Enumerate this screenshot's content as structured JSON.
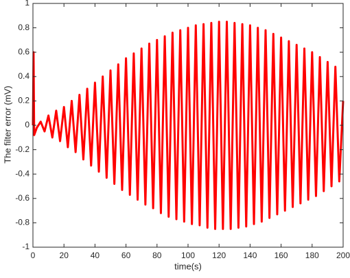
{
  "chart_data": {
    "type": "line",
    "xlabel": "time(s)",
    "ylabel": "The filter error (mV)",
    "x": [
      0,
      0.4,
      0.8,
      2.5,
      5,
      7.5,
      10,
      12.5,
      15,
      17.5,
      20,
      22.5,
      25,
      27.5,
      30,
      32.5,
      35,
      37.5,
      40,
      42.5,
      45,
      47.5,
      50,
      52.5,
      55,
      57.5,
      60,
      62.5,
      65,
      67.5,
      70,
      72.5,
      75,
      77.5,
      80,
      82.5,
      85,
      87.5,
      90,
      92.5,
      95,
      97.5,
      100,
      102.5,
      105,
      107.5,
      110,
      112.5,
      115,
      117.5,
      120,
      122.5,
      125,
      127.5,
      130,
      132.5,
      135,
      137.5,
      140,
      142.5,
      145,
      147.5,
      150,
      152.5,
      155,
      157.5,
      160,
      162.5,
      165,
      167.5,
      170,
      172.5,
      175,
      177.5,
      180,
      182.5,
      185,
      187.5,
      190,
      192.5,
      195,
      197.5,
      200
    ],
    "series": [
      {
        "color": "#ff0000",
        "values": [
          0,
          0.6,
          -0.08,
          -0.02,
          0.03,
          -0.05,
          0.08,
          -0.1,
          0.12,
          -0.13,
          0.15,
          -0.18,
          0.2,
          -0.22,
          0.25,
          -0.28,
          0.3,
          -0.33,
          0.35,
          -0.38,
          0.4,
          -0.43,
          0.45,
          -0.48,
          0.5,
          -0.53,
          0.55,
          -0.57,
          0.59,
          -0.61,
          0.63,
          -0.65,
          0.67,
          -0.68,
          0.7,
          -0.72,
          0.73,
          -0.75,
          0.76,
          -0.77,
          0.78,
          -0.79,
          0.8,
          -0.81,
          0.82,
          -0.82,
          0.83,
          -0.84,
          0.84,
          -0.85,
          0.85,
          -0.85,
          0.85,
          -0.85,
          0.84,
          -0.84,
          0.83,
          -0.83,
          0.82,
          -0.81,
          0.8,
          -0.79,
          0.78,
          -0.76,
          0.75,
          -0.73,
          0.72,
          -0.7,
          0.69,
          -0.67,
          0.66,
          -0.64,
          0.63,
          -0.61,
          0.6,
          -0.58,
          0.56,
          -0.54,
          0.52,
          -0.5,
          0.48,
          -0.46,
          0.2
        ]
      }
    ],
    "xlim": [
      0,
      200
    ],
    "xticks": [
      0,
      20,
      40,
      60,
      80,
      100,
      120,
      140,
      160,
      180,
      200
    ],
    "ylim": [
      -1,
      1
    ],
    "yticks": [
      -1,
      -0.8,
      -0.6,
      -0.4,
      -0.2,
      0,
      0.2,
      0.4,
      0.6,
      0.8,
      1
    ],
    "grid": false
  }
}
